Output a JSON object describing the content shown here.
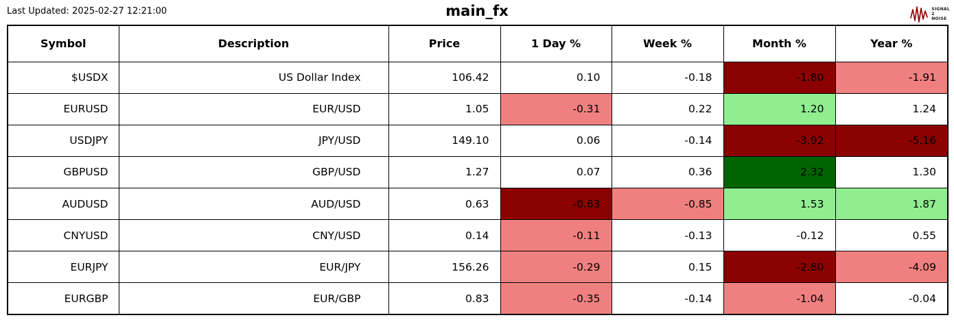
{
  "header": {
    "last_updated": "Last Updated: 2025-02-27 12:21:00",
    "title": "main_fx"
  },
  "logo": {
    "line1": "SIGNAL",
    "line2": "2",
    "line3": "NOISE",
    "waveform_color": "#8b0000"
  },
  "palette": {
    "dark_red": "#8b0000",
    "light_red": "#f08080",
    "light_green": "#90ee90",
    "dark_green": "#006400"
  },
  "chart_data": {
    "type": "table",
    "title": "main_fx",
    "columns": [
      "Symbol",
      "Description",
      "Price",
      "1 Day %",
      "Week %",
      "Month %",
      "Year %"
    ],
    "rows": [
      {
        "cells": [
          "$USDX",
          "US Dollar Index",
          "106.42",
          "0.10",
          "-0.18",
          "-1.80",
          "-1.91"
        ],
        "bg": [
          null,
          null,
          null,
          null,
          null,
          "dark_red",
          "light_red"
        ]
      },
      {
        "cells": [
          "EURUSD",
          "EUR/USD",
          "1.05",
          "-0.31",
          "0.22",
          "1.20",
          "1.24"
        ],
        "bg": [
          null,
          null,
          null,
          "light_red",
          null,
          "light_green",
          null
        ]
      },
      {
        "cells": [
          "USDJPY",
          "JPY/USD",
          "149.10",
          "0.06",
          "-0.14",
          "-3.92",
          "-5.16"
        ],
        "bg": [
          null,
          null,
          null,
          null,
          null,
          "dark_red",
          "dark_red"
        ]
      },
      {
        "cells": [
          "GBPUSD",
          "GBP/USD",
          "1.27",
          "0.07",
          "0.36",
          "2.32",
          "1.30"
        ],
        "bg": [
          null,
          null,
          null,
          null,
          null,
          "dark_green",
          null
        ]
      },
      {
        "cells": [
          "AUDUSD",
          "AUD/USD",
          "0.63",
          "-0.63",
          "-0.85",
          "1.53",
          "1.87"
        ],
        "bg": [
          null,
          null,
          null,
          "dark_red",
          "light_red",
          "light_green",
          "light_green"
        ]
      },
      {
        "cells": [
          "CNYUSD",
          "CNY/USD",
          "0.14",
          "-0.11",
          "-0.13",
          "-0.12",
          "0.55"
        ],
        "bg": [
          null,
          null,
          null,
          "light_red",
          null,
          null,
          null
        ]
      },
      {
        "cells": [
          "EURJPY",
          "EUR/JPY",
          "156.26",
          "-0.29",
          "0.15",
          "-2.80",
          "-4.09"
        ],
        "bg": [
          null,
          null,
          null,
          "light_red",
          null,
          "dark_red",
          "light_red"
        ]
      },
      {
        "cells": [
          "EURGBP",
          "EUR/GBP",
          "0.83",
          "-0.35",
          "-0.14",
          "-1.04",
          "-0.04"
        ],
        "bg": [
          null,
          null,
          null,
          "light_red",
          null,
          "light_red",
          null
        ]
      }
    ]
  }
}
